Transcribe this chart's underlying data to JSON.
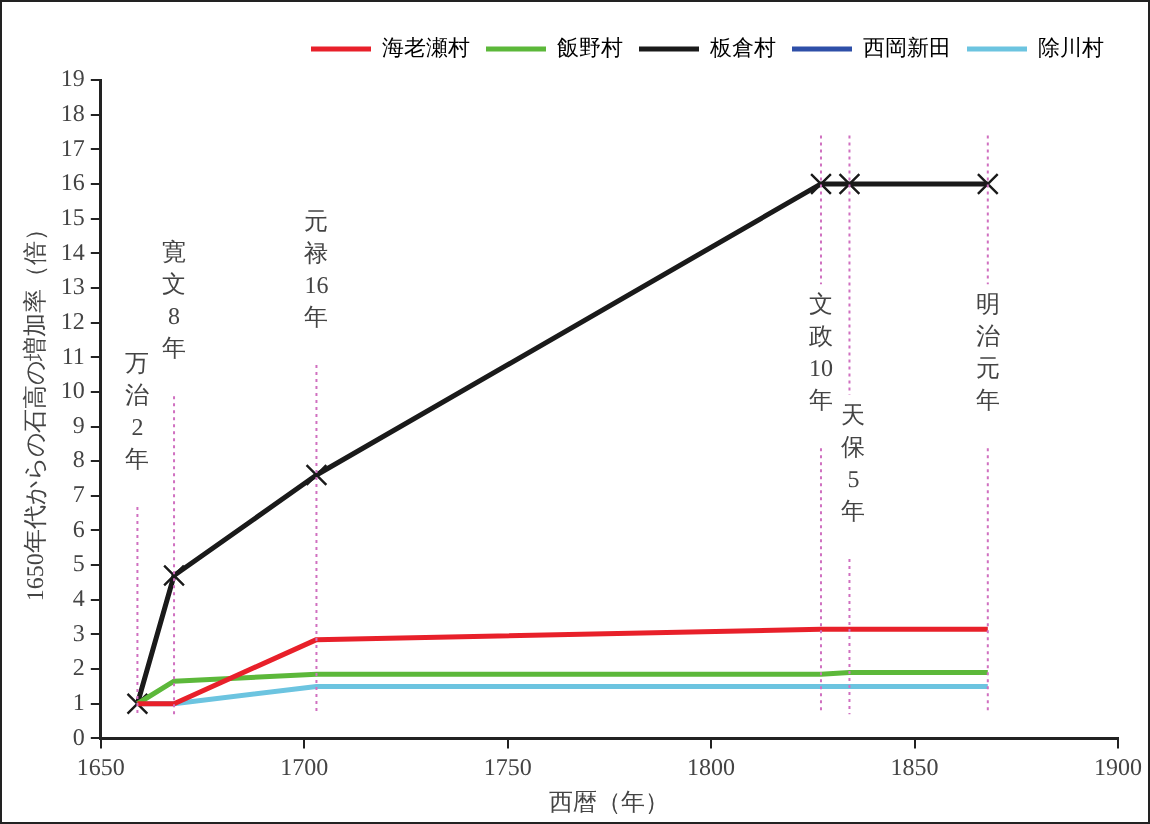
{
  "chart_data": {
    "type": "line",
    "xlabel": "西暦（年）",
    "ylabel": "1650年代からの石高の増加率（倍）",
    "x": [
      1659,
      1668,
      1703,
      1827,
      1834,
      1868
    ],
    "xlim": [
      1650,
      1900
    ],
    "xticks": [
      1650,
      1700,
      1750,
      1800,
      1850,
      1900
    ],
    "ylim": [
      0,
      19
    ],
    "yticks": [
      0,
      1,
      2,
      3,
      4,
      5,
      6,
      7,
      8,
      9,
      10,
      11,
      12,
      13,
      14,
      15,
      16,
      17,
      18,
      19
    ],
    "grid": false,
    "legend": "top",
    "line_style": "solid",
    "series": [
      {
        "name": "海老瀬村",
        "color": "#e8202a",
        "marker": "none",
        "values": [
          1,
          1,
          2.85,
          3.15,
          3.15,
          3.15
        ]
      },
      {
        "name": "飯野村",
        "color": "#5cb83a",
        "marker": "none",
        "values": [
          1,
          1.65,
          1.85,
          1.85,
          1.9,
          1.9
        ]
      },
      {
        "name": "板倉村",
        "color": "#1a1a1a",
        "marker": "cross",
        "values": [
          1,
          4.7,
          7.6,
          16,
          16,
          16
        ]
      },
      {
        "name": "西岡新田",
        "color": "#2e4fa8",
        "marker": "none",
        "values": [
          null,
          null,
          null,
          null,
          null,
          null
        ]
      },
      {
        "name": "除川村",
        "color": "#6cc4e0",
        "marker": "none",
        "values": [
          1,
          1,
          1.5,
          1.5,
          1.5,
          1.5
        ]
      }
    ],
    "ref_lines": [
      {
        "axis": "x",
        "value": 1659,
        "label": "万治2年",
        "color": "#d070c0",
        "line_style": "dotted"
      },
      {
        "axis": "x",
        "value": 1668,
        "label": "寛文8年",
        "color": "#d070c0",
        "line_style": "dotted"
      },
      {
        "axis": "x",
        "value": 1703,
        "label": "元禄16年",
        "color": "#d070c0",
        "line_style": "dotted"
      },
      {
        "axis": "x",
        "value": 1827,
        "label": "文政10年",
        "color": "#d070c0",
        "line_style": "dotted"
      },
      {
        "axis": "x",
        "value": 1834,
        "label": "天保5年",
        "color": "#d070c0",
        "line_style": "dotted"
      },
      {
        "axis": "x",
        "value": 1868,
        "label": "明治元年",
        "color": "#d070c0",
        "line_style": "dotted"
      }
    ]
  }
}
